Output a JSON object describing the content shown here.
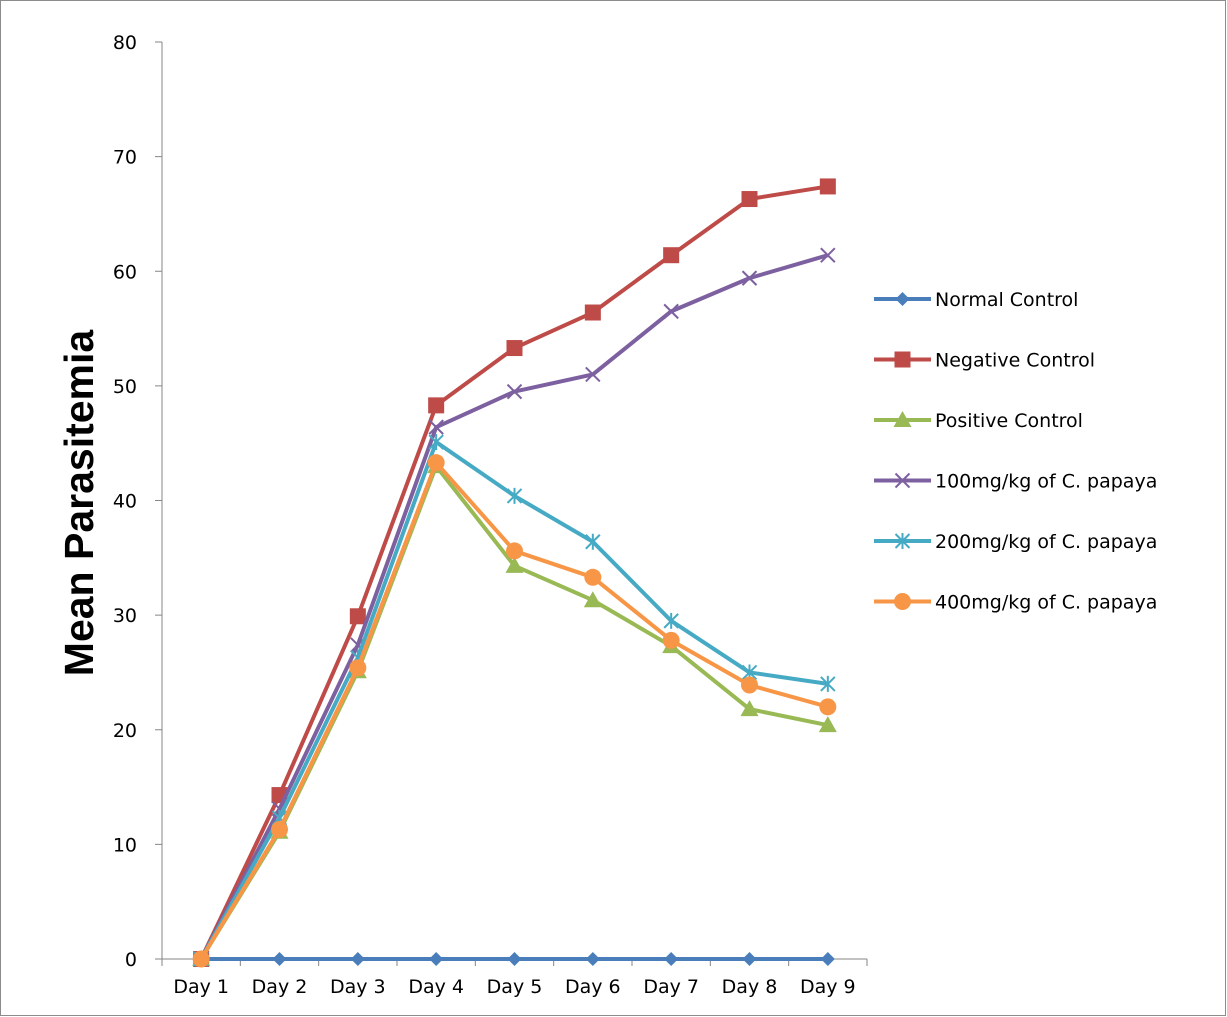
{
  "chart_data": {
    "type": "line",
    "title": "",
    "xlabel": "",
    "ylabel": "Mean Parasitemia",
    "categories": [
      "Day 1",
      "Day 2",
      "Day 3",
      "Day 4",
      "Day 5",
      "Day 6",
      "Day 7",
      "Day 8",
      "Day 9"
    ],
    "ylim": [
      0,
      80
    ],
    "yticks": [
      0,
      10,
      20,
      30,
      40,
      50,
      60,
      70,
      80
    ],
    "grid": false,
    "legend_position": "right",
    "series": [
      {
        "name": "Normal Control",
        "color": "#4a7ebb",
        "marker": "diamond",
        "values": [
          0,
          0,
          0,
          0,
          0,
          0,
          0,
          0,
          0
        ]
      },
      {
        "name": "Negative Control",
        "color": "#be4b48",
        "marker": "square",
        "values": [
          0,
          14.3,
          29.9,
          48.3,
          53.3,
          56.4,
          61.4,
          66.3,
          67.4
        ]
      },
      {
        "name": "Positive Control",
        "color": "#98b954",
        "marker": "triangle",
        "values": [
          0,
          11.1,
          25.1,
          43.0,
          34.3,
          31.3,
          27.3,
          21.8,
          20.4
        ]
      },
      {
        "name": "100mg/kg of C. papaya",
        "color": "#7d60a0",
        "marker": "x",
        "values": [
          0,
          13.1,
          27.4,
          46.4,
          49.5,
          51.0,
          56.5,
          59.4,
          61.4
        ]
      },
      {
        "name": "200mg/kg of C. papaya",
        "color": "#46aac5",
        "marker": "star",
        "values": [
          0,
          12.3,
          26.3,
          45.1,
          40.4,
          36.4,
          29.5,
          25.0,
          24.0
        ]
      },
      {
        "name": "400mg/kg of C. papaya",
        "color": "#f79646",
        "marker": "circle",
        "values": [
          0,
          11.3,
          25.4,
          43.3,
          35.6,
          33.3,
          27.8,
          23.9,
          22.0
        ]
      }
    ]
  }
}
